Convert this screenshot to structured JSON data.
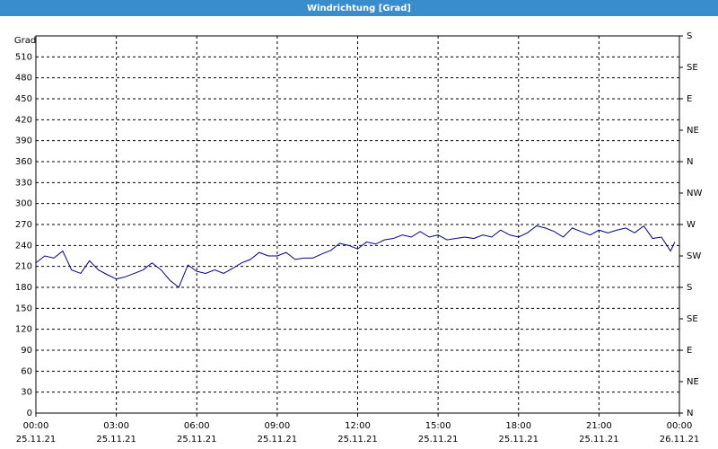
{
  "chart_data": {
    "type": "line",
    "title": "Windrichtung [Grad]",
    "y_label": "Grad",
    "x": [
      0,
      0.33,
      0.67,
      1,
      1.33,
      1.67,
      2,
      2.33,
      2.67,
      3,
      3.33,
      3.67,
      4,
      4.33,
      4.67,
      5,
      5.33,
      5.67,
      6,
      6.33,
      6.67,
      7,
      7.33,
      7.67,
      8,
      8.33,
      8.67,
      9,
      9.33,
      9.67,
      10,
      10.33,
      10.67,
      11,
      11.33,
      11.67,
      12,
      12.33,
      12.67,
      13,
      13.33,
      13.67,
      14,
      14.33,
      14.67,
      15,
      15.33,
      15.67,
      16,
      16.33,
      16.67,
      17,
      17.33,
      17.67,
      18,
      18.33,
      18.67,
      19,
      19.33,
      19.67,
      20,
      20.33,
      20.67,
      21,
      21.33,
      21.67,
      22,
      22.33,
      22.67,
      23,
      23.33,
      23.67,
      23.83
    ],
    "series": [
      {
        "name": "Windrichtung",
        "color": "#00008b",
        "values": [
          215,
          225,
          222,
          232,
          205,
          200,
          218,
          205,
          198,
          192,
          195,
          200,
          205,
          215,
          205,
          190,
          180,
          212,
          203,
          200,
          205,
          200,
          207,
          215,
          220,
          230,
          225,
          225,
          230,
          220,
          222,
          222,
          228,
          233,
          243,
          240,
          235,
          245,
          242,
          248,
          250,
          255,
          252,
          260,
          252,
          255,
          248,
          250,
          252,
          250,
          255,
          252,
          262,
          255,
          252,
          258,
          268,
          265,
          260,
          252,
          265,
          260,
          255,
          262,
          258,
          262,
          265,
          258,
          268,
          250,
          252,
          232,
          245
        ]
      }
    ],
    "xlim": [
      0,
      24
    ],
    "ylim": [
      0,
      540
    ],
    "y2lim": [
      0,
      540
    ],
    "xticks": [
      {
        "value": 0,
        "label": "00:00",
        "date": "25.11.21"
      },
      {
        "value": 3,
        "label": "03:00",
        "date": "25.11.21"
      },
      {
        "value": 6,
        "label": "06:00",
        "date": "25.11.21"
      },
      {
        "value": 9,
        "label": "09:00",
        "date": "25.11.21"
      },
      {
        "value": 12,
        "label": "12:00",
        "date": "25.11.21"
      },
      {
        "value": 15,
        "label": "15:00",
        "date": "25.11.21"
      },
      {
        "value": 18,
        "label": "18:00",
        "date": "25.11.21"
      },
      {
        "value": 21,
        "label": "21:00",
        "date": "25.11.21"
      },
      {
        "value": 24,
        "label": "00:00",
        "date": "26.11.21"
      }
    ],
    "yticks": [
      0,
      30,
      60,
      90,
      120,
      150,
      180,
      210,
      240,
      270,
      300,
      330,
      360,
      390,
      420,
      450,
      480,
      510
    ],
    "y2ticks": [
      {
        "value": 0,
        "label": "N"
      },
      {
        "value": 45,
        "label": "NE"
      },
      {
        "value": 90,
        "label": "E"
      },
      {
        "value": 135,
        "label": "SE"
      },
      {
        "value": 180,
        "label": "S"
      },
      {
        "value": 225,
        "label": "SW"
      },
      {
        "value": 270,
        "label": "W"
      },
      {
        "value": 315,
        "label": "NW"
      },
      {
        "value": 360,
        "label": "N"
      },
      {
        "value": 405,
        "label": "NE"
      },
      {
        "value": 450,
        "label": "E"
      },
      {
        "value": 495,
        "label": "SE"
      },
      {
        "value": 540,
        "label": "S"
      }
    ],
    "grid": true
  }
}
